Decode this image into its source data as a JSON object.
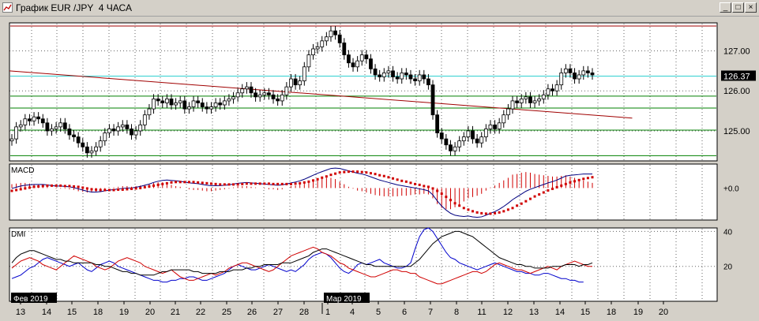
{
  "window": {
    "title": "График EUR /JPY  4 ЧАСА",
    "buttons": [
      "_",
      "□",
      "×"
    ]
  },
  "chart_data": {
    "type": "candlestick",
    "symbol": "EUR/JPY",
    "timeframe": "4 ЧАСА",
    "price_panel": {
      "ylim": [
        124.25,
        127.7
      ],
      "yticks": [
        125.0,
        126.0,
        127.0
      ],
      "ytick_labels": [
        "125.00",
        "126.00",
        "127.00"
      ],
      "current_price": "126.37",
      "grid": true,
      "horizontal_lines": [
        {
          "price": 127.62,
          "color": "#a00000"
        },
        {
          "price": 126.37,
          "color": "#30d0d0"
        },
        {
          "price": 125.87,
          "color": "#008000"
        },
        {
          "price": 125.57,
          "color": "#008000"
        },
        {
          "price": 125.02,
          "color": "#008000"
        },
        {
          "price": 124.38,
          "color": "#008000"
        }
      ],
      "trendline": {
        "from": [
          0,
          126.5
        ],
        "to": [
          140,
          125.32
        ],
        "color": "#a00000"
      },
      "closes": [
        124.8,
        125.1,
        125.15,
        125.3,
        125.25,
        125.35,
        125.3,
        125.2,
        125.0,
        125.05,
        125.1,
        125.2,
        125.05,
        124.9,
        124.85,
        124.7,
        124.6,
        124.45,
        124.5,
        124.6,
        124.75,
        124.95,
        125.05,
        125.0,
        125.1,
        125.15,
        125.05,
        124.9,
        125.0,
        125.15,
        125.4,
        125.55,
        125.8,
        125.75,
        125.7,
        125.8,
        125.65,
        125.7,
        125.75,
        125.55,
        125.6,
        125.75,
        125.7,
        125.6,
        125.55,
        125.6,
        125.7,
        125.65,
        125.75,
        125.8,
        125.85,
        125.95,
        126.05,
        126.1,
        125.95,
        125.85,
        125.9,
        125.95,
        125.9,
        125.8,
        125.75,
        125.9,
        126.1,
        126.3,
        126.15,
        126.25,
        126.6,
        126.9,
        127.05,
        127.1,
        127.25,
        127.35,
        127.5,
        127.4,
        127.2,
        126.9,
        126.7,
        126.6,
        126.75,
        126.9,
        126.8,
        126.55,
        126.4,
        126.35,
        126.45,
        126.5,
        126.35,
        126.3,
        126.45,
        126.4,
        126.3,
        126.25,
        126.4,
        126.3,
        126.15,
        125.4,
        124.95,
        124.8,
        124.65,
        124.5,
        124.6,
        124.75,
        124.85,
        125.0,
        124.8,
        124.7,
        124.85,
        125.05,
        125.15,
        125.05,
        125.2,
        125.4,
        125.55,
        125.75,
        125.7,
        125.8,
        125.85,
        125.7,
        125.75,
        125.8,
        125.9,
        126.05,
        126.0,
        126.15,
        126.45,
        126.55,
        126.45,
        126.3,
        126.4,
        126.5,
        126.45,
        126.4
      ]
    },
    "macd_panel": {
      "label": "MACD",
      "zero_label": "+0.0",
      "macd": [
        -0.01,
        0.02,
        0.05,
        0.07,
        0.08,
        0.09,
        0.09,
        0.09,
        0.08,
        0.06,
        0.05,
        0.05,
        0.04,
        0.03,
        0.01,
        -0.02,
        -0.05,
        -0.08,
        -0.1,
        -0.1,
        -0.09,
        -0.07,
        -0.05,
        -0.04,
        -0.02,
        -0.01,
        0.0,
        0.0,
        0.02,
        0.04,
        0.07,
        0.1,
        0.14,
        0.17,
        0.19,
        0.2,
        0.19,
        0.18,
        0.17,
        0.15,
        0.13,
        0.12,
        0.11,
        0.09,
        0.07,
        0.06,
        0.06,
        0.06,
        0.07,
        0.08,
        0.1,
        0.12,
        0.13,
        0.14,
        0.13,
        0.12,
        0.11,
        0.1,
        0.09,
        0.08,
        0.07,
        0.08,
        0.1,
        0.13,
        0.15,
        0.18,
        0.22,
        0.27,
        0.32,
        0.37,
        0.41,
        0.45,
        0.49,
        0.5,
        0.49,
        0.46,
        0.43,
        0.4,
        0.37,
        0.35,
        0.32,
        0.28,
        0.24,
        0.2,
        0.17,
        0.14,
        0.11,
        0.08,
        0.06,
        0.04,
        0.02,
        0.0,
        -0.02,
        -0.04,
        -0.07,
        -0.17,
        -0.32,
        -0.45,
        -0.55,
        -0.63,
        -0.68,
        -0.7,
        -0.71,
        -0.7,
        -0.72,
        -0.73,
        -0.72,
        -0.68,
        -0.63,
        -0.59,
        -0.53,
        -0.46,
        -0.38,
        -0.29,
        -0.22,
        -0.15,
        -0.08,
        -0.03,
        0.01,
        0.05,
        0.09,
        0.13,
        0.16,
        0.2,
        0.25,
        0.3,
        0.32,
        0.33,
        0.34,
        0.35,
        0.35,
        0.35
      ],
      "signal": [
        -0.07,
        -0.05,
        -0.03,
        -0.01,
        0.01,
        0.03,
        0.04,
        0.05,
        0.06,
        0.06,
        0.06,
        0.06,
        0.05,
        0.05,
        0.04,
        0.03,
        0.01,
        -0.01,
        -0.03,
        -0.04,
        -0.05,
        -0.05,
        -0.05,
        -0.05,
        -0.04,
        -0.04,
        -0.03,
        -0.02,
        -0.01,
        0.0,
        0.02,
        0.04,
        0.06,
        0.08,
        0.1,
        0.12,
        0.14,
        0.15,
        0.15,
        0.15,
        0.15,
        0.15,
        0.14,
        0.13,
        0.12,
        0.11,
        0.1,
        0.09,
        0.09,
        0.09,
        0.09,
        0.09,
        0.1,
        0.11,
        0.11,
        0.11,
        0.11,
        0.11,
        0.11,
        0.1,
        0.1,
        0.1,
        0.1,
        0.1,
        0.11,
        0.12,
        0.14,
        0.16,
        0.19,
        0.22,
        0.26,
        0.29,
        0.33,
        0.36,
        0.39,
        0.4,
        0.41,
        0.41,
        0.41,
        0.4,
        0.39,
        0.37,
        0.35,
        0.32,
        0.3,
        0.27,
        0.24,
        0.21,
        0.18,
        0.16,
        0.13,
        0.1,
        0.08,
        0.05,
        0.03,
        -0.01,
        -0.07,
        -0.14,
        -0.22,
        -0.3,
        -0.38,
        -0.44,
        -0.5,
        -0.54,
        -0.58,
        -0.61,
        -0.63,
        -0.64,
        -0.64,
        -0.63,
        -0.61,
        -0.58,
        -0.54,
        -0.5,
        -0.44,
        -0.39,
        -0.33,
        -0.27,
        -0.21,
        -0.16,
        -0.11,
        -0.06,
        -0.02,
        0.02,
        0.06,
        0.1,
        0.14,
        0.17,
        0.2,
        0.23,
        0.25,
        0.27
      ]
    },
    "dmi_panel": {
      "label": "DMI",
      "ylim": [
        0,
        42
      ],
      "yticks": [
        20,
        40
      ],
      "ytick_labels": [
        "20",
        "40"
      ],
      "plus_di": [
        13,
        14,
        15,
        17,
        19,
        20,
        22,
        24,
        25,
        24,
        23,
        22,
        21,
        20,
        21,
        22,
        20,
        18,
        17,
        19,
        21,
        22,
        23,
        22,
        20,
        19,
        18,
        17,
        16,
        15,
        14,
        13,
        12,
        12,
        11,
        11,
        12,
        12,
        13,
        13,
        14,
        14,
        13,
        12,
        12,
        13,
        14,
        15,
        16,
        18,
        20,
        21,
        20,
        19,
        18,
        18,
        19,
        20,
        21,
        20,
        19,
        18,
        17,
        18,
        17,
        19,
        21,
        24,
        26,
        27,
        28,
        27,
        25,
        22,
        19,
        17,
        16,
        18,
        21,
        22,
        21,
        22,
        23,
        24,
        22,
        21,
        20,
        19,
        19,
        20,
        22,
        30,
        37,
        41,
        42,
        40,
        36,
        32,
        28,
        25,
        24,
        22,
        21,
        20,
        19,
        18,
        19,
        20,
        21,
        22,
        21,
        20,
        19,
        18,
        17,
        17,
        16,
        16,
        15,
        15,
        16,
        16,
        15,
        14,
        13,
        13,
        12,
        12,
        11,
        11
      ],
      "minus_di": [
        19,
        21,
        23,
        24,
        25,
        24,
        23,
        21,
        20,
        19,
        18,
        20,
        22,
        24,
        26,
        25,
        24,
        23,
        22,
        20,
        19,
        18,
        19,
        21,
        23,
        24,
        25,
        24,
        23,
        22,
        20,
        19,
        18,
        17,
        16,
        17,
        18,
        16,
        14,
        13,
        12,
        12,
        13,
        14,
        15,
        16,
        15,
        16,
        17,
        19,
        20,
        21,
        22,
        22,
        21,
        20,
        19,
        18,
        17,
        18,
        20,
        22,
        24,
        26,
        27,
        28,
        29,
        30,
        31,
        30,
        28,
        27,
        26,
        24,
        22,
        21,
        19,
        18,
        17,
        16,
        15,
        14,
        14,
        15,
        16,
        17,
        18,
        18,
        17,
        17,
        16,
        16,
        14,
        13,
        12,
        11,
        10,
        10,
        11,
        12,
        13,
        14,
        15,
        16,
        17,
        17,
        16,
        17,
        19,
        21,
        22,
        21,
        20,
        19,
        18,
        18,
        17,
        16,
        17,
        18,
        19,
        20,
        19,
        18,
        20,
        21,
        22,
        23,
        22,
        21,
        20,
        20
      ],
      "adx": [
        22,
        25,
        27,
        28,
        29,
        29,
        28,
        27,
        26,
        25,
        24,
        24,
        23,
        23,
        22,
        22,
        22,
        22,
        22,
        21,
        21,
        20,
        20,
        19,
        18,
        17,
        17,
        16,
        16,
        15,
        15,
        15,
        15,
        16,
        17,
        17,
        18,
        18,
        18,
        18,
        18,
        17,
        17,
        16,
        16,
        16,
        16,
        17,
        17,
        17,
        18,
        18,
        18,
        19,
        19,
        20,
        20,
        21,
        21,
        21,
        21,
        22,
        22,
        22,
        23,
        24,
        25,
        26,
        28,
        29,
        30,
        30,
        29,
        28,
        27,
        26,
        25,
        24,
        23,
        22,
        21,
        21,
        20,
        20,
        20,
        20,
        20,
        20,
        20,
        20,
        20,
        22,
        24,
        27,
        30,
        33,
        35,
        37,
        38,
        39,
        40,
        40,
        39,
        38,
        37,
        35,
        33,
        31,
        29,
        27,
        25,
        24,
        23,
        22,
        21,
        21,
        20,
        20,
        19,
        19,
        19,
        19,
        20,
        20,
        20,
        21,
        21,
        21,
        20,
        21,
        21,
        22
      ]
    },
    "date_flags": [
      "Фев 2019",
      "Мар 2019"
    ],
    "x_labels": [
      "13",
      "14",
      "15",
      "18",
      "19",
      "20",
      "21",
      "22",
      "25",
      "26",
      "27",
      "28",
      "1",
      "4",
      "5",
      "6",
      "7",
      "8",
      "11",
      "12",
      "13",
      "14",
      "15",
      "18",
      "19",
      "20"
    ]
  }
}
